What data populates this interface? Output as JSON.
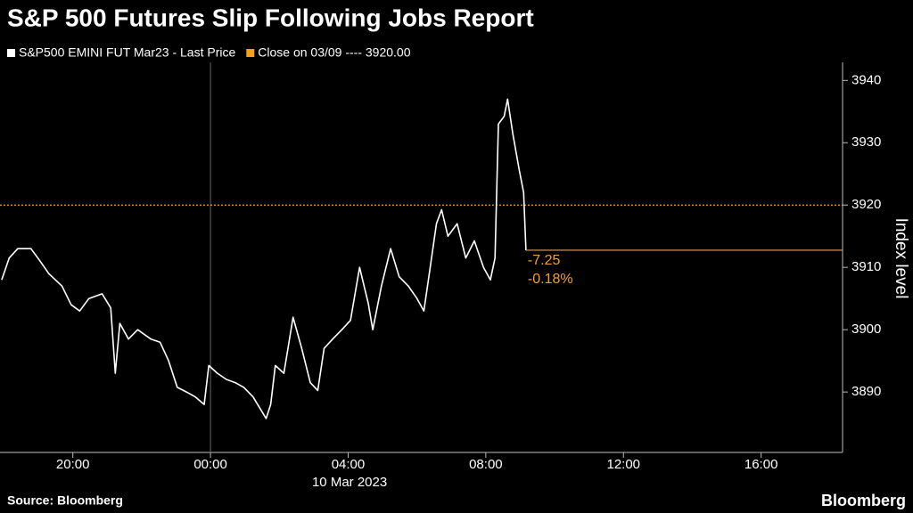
{
  "chart_data": {
    "type": "line",
    "title": "S&P 500 Futures Slip Following Jobs Report",
    "x": [
      "17:56",
      "18:09",
      "18:24",
      "18:47",
      "19:03",
      "19:18",
      "19:41",
      "19:57",
      "20:12",
      "20:28",
      "20:51",
      "21:06",
      "21:14",
      "21:22",
      "21:37",
      "21:53",
      "22:16",
      "22:32",
      "22:47",
      "23:02",
      "23:18",
      "23:33",
      "23:49",
      "23:57",
      "00:12",
      "00:28",
      "00:43",
      "00:58",
      "01:14",
      "01:37",
      "01:45",
      "01:53",
      "02:08",
      "02:24",
      "02:39",
      "02:54",
      "03:07",
      "03:18",
      "03:33",
      "03:49",
      "04:04",
      "04:20",
      "04:35",
      "04:43",
      "04:58",
      "05:14",
      "05:29",
      "05:45",
      "06:00",
      "06:12",
      "06:23",
      "06:34",
      "06:43",
      "06:54",
      "07:10",
      "07:25",
      "07:40",
      "07:56",
      "08:08",
      "08:16",
      "08:22",
      "08:32",
      "08:38",
      "08:47",
      "08:58",
      "09:06",
      "09:10"
    ],
    "series": [
      {
        "name": "S&P500 EMINI FUT Mar23 - Last Price",
        "color": "#ffffff",
        "values": [
          3908,
          3911.5,
          3913,
          3913,
          3911,
          3909,
          3907,
          3904,
          3903,
          3905,
          3905.75,
          3903.5,
          3893,
          3901,
          3898.5,
          3900,
          3898.5,
          3898,
          3895,
          3890.75,
          3890,
          3889.25,
          3888,
          3894.25,
          3893,
          3892,
          3891.5,
          3890.75,
          3889.25,
          3885.75,
          3888,
          3894.25,
          3893,
          3902,
          3897,
          3891.5,
          3890.25,
          3897,
          3898.5,
          3900,
          3901.5,
          3910,
          3904.25,
          3900,
          3907,
          3913,
          3908.5,
          3907,
          3905,
          3903,
          3910,
          3917,
          3919.25,
          3915,
          3917,
          3911.5,
          3914.25,
          3910,
          3908,
          3911.5,
          3933,
          3934.25,
          3937,
          3931.5,
          3925.75,
          3922,
          3912.75
        ]
      },
      {
        "name": "Close on 03/09 ---- 3920.00",
        "color": "#f7a01d",
        "value": 3920
      }
    ],
    "change_labels": [
      "-7.25",
      "-0.18%"
    ],
    "xlim": [
      "17:53",
      "18:22"
    ],
    "xticks": [
      "20:00",
      "00:00",
      "04:00",
      "08:00",
      "12:00",
      "16:00"
    ],
    "x_date_label": "10 Mar 2023",
    "ylim": [
      3880.3,
      3942.9
    ],
    "yticks": [
      3890,
      3900,
      3910,
      3920,
      3930,
      3940
    ],
    "y_label": "Index level",
    "source": "Source: Bloomberg",
    "brand": "Bloomberg"
  }
}
